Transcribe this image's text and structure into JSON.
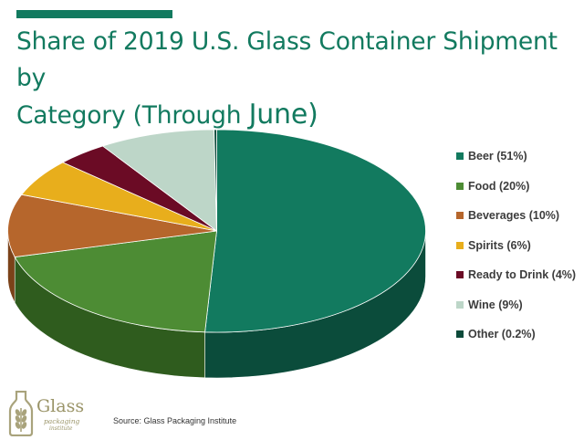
{
  "title": {
    "line1": "Share of 2019 U.S. Glass Container Shipment by",
    "line2_prefix": "Category (Through ",
    "line2_big": "June)"
  },
  "chart_data": {
    "type": "pie",
    "title": "Share of 2019 U.S. Glass Container Shipment by Category (Through June)",
    "legend_position": "right",
    "series": [
      {
        "name": "Beer",
        "value": 51,
        "label": "Beer (51%)",
        "color": "#127a5f",
        "side_color": "#0b4c3b"
      },
      {
        "name": "Food",
        "value": 20,
        "label": "Food (20%)",
        "color": "#4d8c34",
        "side_color": "#2f5c1e"
      },
      {
        "name": "Beverages",
        "value": 10,
        "label": "Beverages (10%)",
        "color": "#b6662c",
        "side_color": "#7b4219"
      },
      {
        "name": "Spirits",
        "value": 6,
        "label": "Spirits (6%)",
        "color": "#e8ae1c",
        "side_color": "#a87b0e"
      },
      {
        "name": "Ready to Drink",
        "value": 4,
        "label": "Ready to Drink (4%)",
        "color": "#6b0b25",
        "side_color": "#420615"
      },
      {
        "name": "Wine",
        "value": 9,
        "label": "Wine (9%)",
        "color": "#bdd6c8",
        "side_color": "#8ea597"
      },
      {
        "name": "Other",
        "value": 0.2,
        "label": "Other (0.2%)",
        "color": "#0c4a3a",
        "side_color": "#062a21"
      }
    ]
  },
  "legend": [
    {
      "label": "Beer (51%)",
      "color": "#127a5f"
    },
    {
      "label": "Food (20%)",
      "color": "#4d8c34"
    },
    {
      "label": "Beverages (10%)",
      "color": "#b6662c"
    },
    {
      "label": "Spirits (6%)",
      "color": "#e8ae1c"
    },
    {
      "label": "Ready to Drink (4%)",
      "color": "#6b0b25"
    },
    {
      "label": "Wine (9%)",
      "color": "#bdd6c8"
    },
    {
      "label": "Other (0.2%)",
      "color": "#0c4a3a"
    }
  ],
  "logo": {
    "word": "Glass",
    "sub1": "packaging",
    "sub2": "institute"
  },
  "source": "Source: Glass Packaging Institute"
}
